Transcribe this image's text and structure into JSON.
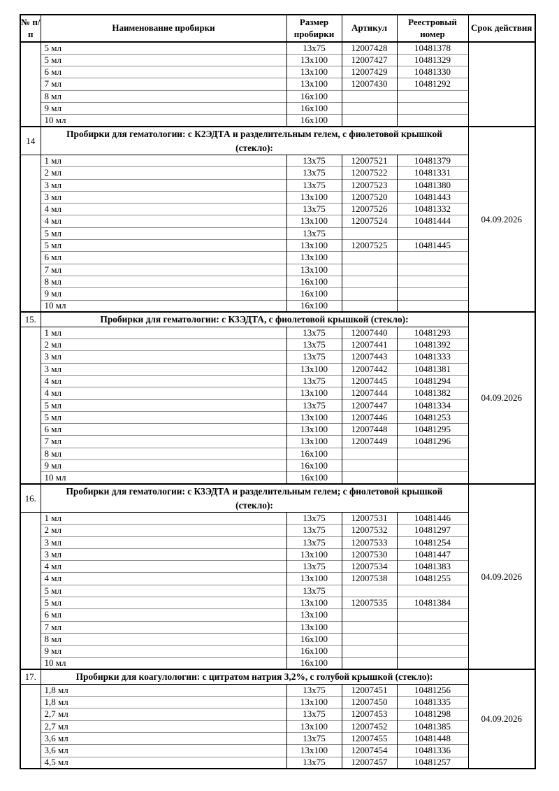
{
  "colors": {
    "page_bg": "#ffffff",
    "text": "#000000",
    "border": "#000000",
    "row_line": "#8c8c8c"
  },
  "header": {
    "col_num": "№ п/п",
    "col_name": "Наименование пробирки",
    "col_size": "Размер пробирки",
    "col_article": "Артикул",
    "col_registry": "Реестровый номер",
    "col_validity": "Срок действия"
  },
  "sections": [
    {
      "number": "",
      "title": null,
      "title_lines": 0,
      "validity": "",
      "rows": [
        {
          "name": "5 мл",
          "size": "13x75",
          "article": "12007428",
          "registry": "10481378"
        },
        {
          "name": "5 мл",
          "size": "13x100",
          "article": "12007427",
          "registry": "10481329"
        },
        {
          "name": "6 мл",
          "size": "13x100",
          "article": "12007429",
          "registry": "10481330"
        },
        {
          "name": "7 мл",
          "size": "13x100",
          "article": "12007430",
          "registry": "10481292"
        },
        {
          "name": "8 мл",
          "size": "16x100",
          "article": "",
          "registry": ""
        },
        {
          "name": "9 мл",
          "size": "16x100",
          "article": "",
          "registry": ""
        },
        {
          "name": "10 мл",
          "size": "16x100",
          "article": "",
          "registry": ""
        }
      ]
    },
    {
      "number": "14",
      "title": "Пробирки для гематологии: с К2ЭДТА и разделительным гелем, с фиолетовой крышкой (стекло):",
      "title_lines": 2,
      "validity": "04.09.2026",
      "rows": [
        {
          "name": "1 мл",
          "size": "13x75",
          "article": "12007521",
          "registry": "10481379"
        },
        {
          "name": "2 мл",
          "size": "13x75",
          "article": "12007522",
          "registry": "10481331"
        },
        {
          "name": "3 мл",
          "size": "13x75",
          "article": "12007523",
          "registry": "10481380"
        },
        {
          "name": "3 мл",
          "size": "13x100",
          "article": "12007520",
          "registry": "10481443"
        },
        {
          "name": "4 мл",
          "size": "13x75",
          "article": "12007526",
          "registry": "10481332"
        },
        {
          "name": "4 мл",
          "size": "13x100",
          "article": "12007524",
          "registry": "10481444"
        },
        {
          "name": "5 мл",
          "size": "13x75",
          "article": "",
          "registry": ""
        },
        {
          "name": "5 мл",
          "size": "13x100",
          "article": "12007525",
          "registry": "10481445"
        },
        {
          "name": "6 мл",
          "size": "13x100",
          "article": "",
          "registry": ""
        },
        {
          "name": "7 мл",
          "size": "13x100",
          "article": "",
          "registry": ""
        },
        {
          "name": "8 мл",
          "size": "16x100",
          "article": "",
          "registry": ""
        },
        {
          "name": "9 мл",
          "size": "16x100",
          "article": "",
          "registry": ""
        },
        {
          "name": "10 мл",
          "size": "16x100",
          "article": "",
          "registry": ""
        }
      ]
    },
    {
      "number": "15.",
      "title": "Пробирки для гематологии: с К3ЭДТА, с фиолетовой крышкой (стекло):",
      "title_lines": 1,
      "validity": "04.09.2026",
      "rows": [
        {
          "name": "1 мл",
          "size": "13x75",
          "article": "12007440",
          "registry": "10481293"
        },
        {
          "name": "2 мл",
          "size": "13x75",
          "article": "12007441",
          "registry": "10481392"
        },
        {
          "name": "3 мл",
          "size": "13x75",
          "article": "12007443",
          "registry": "10481333"
        },
        {
          "name": "3 мл",
          "size": "13x100",
          "article": "12007442",
          "registry": "10481381"
        },
        {
          "name": "4 мл",
          "size": "13x75",
          "article": "12007445",
          "registry": "10481294"
        },
        {
          "name": "4 мл",
          "size": "13x100",
          "article": "12007444",
          "registry": "10481382"
        },
        {
          "name": "5 мл",
          "size": "13x75",
          "article": "12007447",
          "registry": "10481334"
        },
        {
          "name": "5 мл",
          "size": "13x100",
          "article": "12007446",
          "registry": "10481253"
        },
        {
          "name": "6 мл",
          "size": "13x100",
          "article": "12007448",
          "registry": "10481295"
        },
        {
          "name": "7 мл",
          "size": "13x100",
          "article": "12007449",
          "registry": "10481296"
        },
        {
          "name": "8 мл",
          "size": "16x100",
          "article": "",
          "registry": ""
        },
        {
          "name": "9 мл",
          "size": "16x100",
          "article": "",
          "registry": ""
        },
        {
          "name": "10 мл",
          "size": "16x100",
          "article": "",
          "registry": ""
        }
      ]
    },
    {
      "number": "16.",
      "title": "Пробирки для гематологии: с К3ЭДТА и разделительным гелем; с фиолетовой крышкой (стекло):",
      "title_lines": 2,
      "validity": "04.09.2026",
      "rows": [
        {
          "name": "1 мл",
          "size": "13x75",
          "article": "12007531",
          "registry": "10481446"
        },
        {
          "name": "2 мл",
          "size": "13x75",
          "article": "12007532",
          "registry": "10481297"
        },
        {
          "name": "3 мл",
          "size": "13x75",
          "article": "12007533",
          "registry": "10481254"
        },
        {
          "name": "3 мл",
          "size": "13x100",
          "article": "12007530",
          "registry": "10481447"
        },
        {
          "name": "4 мл",
          "size": "13x75",
          "article": "12007534",
          "registry": "10481383"
        },
        {
          "name": "4 мл",
          "size": "13x100",
          "article": "12007538",
          "registry": "10481255"
        },
        {
          "name": "5 мл",
          "size": "13x75",
          "article": "",
          "registry": ""
        },
        {
          "name": "5 мл",
          "size": "13x100",
          "article": "12007535",
          "registry": "10481384"
        },
        {
          "name": "6 мл",
          "size": "13x100",
          "article": "",
          "registry": ""
        },
        {
          "name": "7 мл",
          "size": "13x100",
          "article": "",
          "registry": ""
        },
        {
          "name": "8 мл",
          "size": "16x100",
          "article": "",
          "registry": ""
        },
        {
          "name": "9 мл",
          "size": "16x100",
          "article": "",
          "registry": ""
        },
        {
          "name": "10 мл",
          "size": "16x100",
          "article": "",
          "registry": ""
        }
      ]
    },
    {
      "number": "17.",
      "title": "Пробирки для коагулологии: с цитратом натрия 3,2%, с голубой крышкой (стекло):",
      "title_lines": 1,
      "validity": "04.09.2026",
      "rows": [
        {
          "name": "1,8 мл",
          "size": "13x75",
          "article": "12007451",
          "registry": "10481256"
        },
        {
          "name": "1,8 мл",
          "size": "13x100",
          "article": "12007450",
          "registry": "10481335"
        },
        {
          "name": "2,7 мл",
          "size": "13x75",
          "article": "12007453",
          "registry": "10481298"
        },
        {
          "name": "2,7 мл",
          "size": "13x100",
          "article": "12007452",
          "registry": "10481385"
        },
        {
          "name": "3,6 мл",
          "size": "13x75",
          "article": "12007455",
          "registry": "10481448"
        },
        {
          "name": "3,6 мл",
          "size": "13x100",
          "article": "12007454",
          "registry": "10481336"
        },
        {
          "name": "4,5 мл",
          "size": "13x75",
          "article": "12007457",
          "registry": "10481257"
        }
      ]
    }
  ]
}
